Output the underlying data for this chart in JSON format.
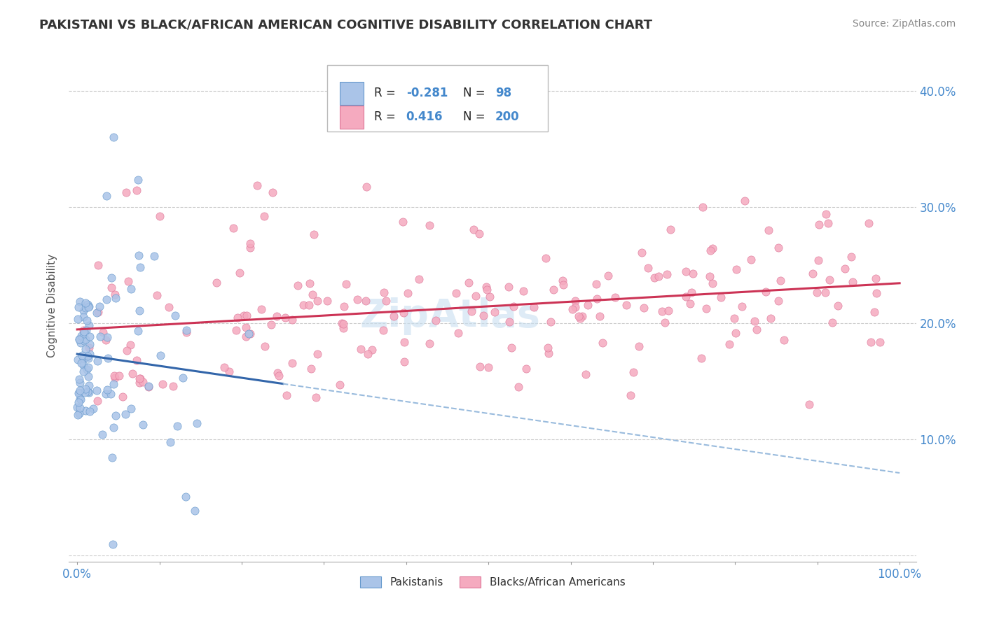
{
  "title": "PAKISTANI VS BLACK/AFRICAN AMERICAN COGNITIVE DISABILITY CORRELATION CHART",
  "source": "Source: ZipAtlas.com",
  "ylabel_label": "Cognitive Disability",
  "R_pakistani": -0.281,
  "N_pakistani": 98,
  "R_black": 0.416,
  "N_black": 200,
  "pakistani_color": "#aac4e8",
  "pakistani_edge": "#6699cc",
  "black_color": "#f5aabf",
  "black_edge": "#dd7799",
  "trend_pakistani_color": "#3366aa",
  "trend_black_color": "#cc3355",
  "trend_dashed_color": "#99bbdd",
  "watermark": "ZipAtlas",
  "tick_label_color": "#4488cc",
  "title_color": "#333333",
  "pakistani_seed": 12,
  "black_seed": 55
}
